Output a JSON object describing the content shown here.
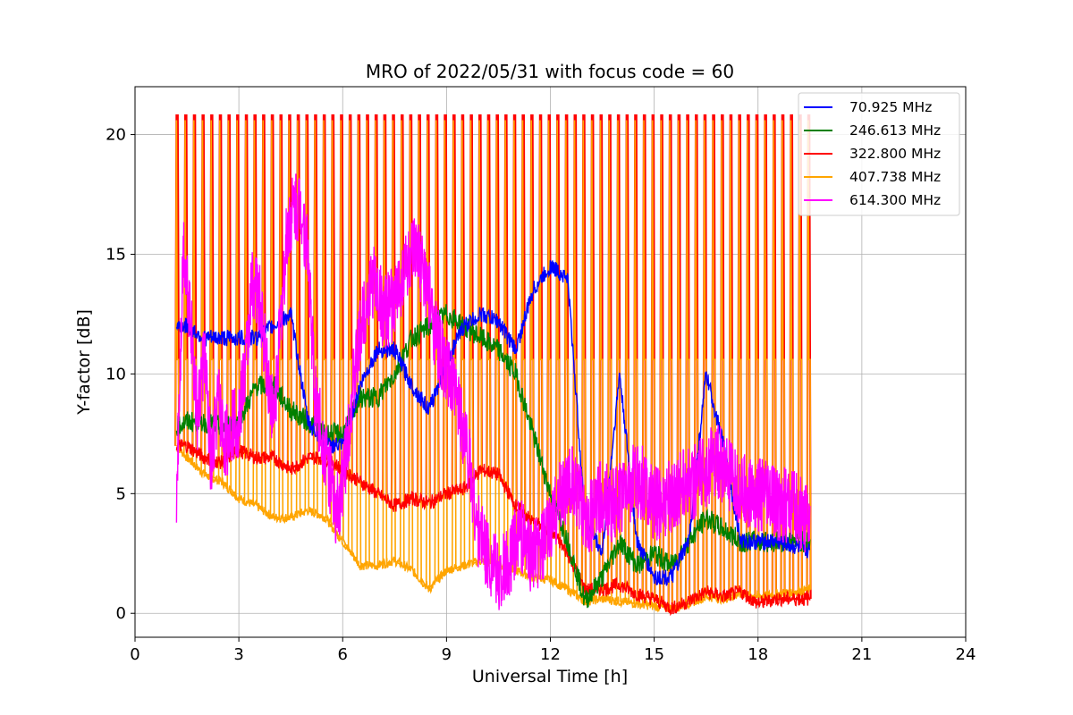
{
  "chart_data": {
    "type": "line",
    "title": "MRO of 2022/05/31 with focus code = 60",
    "xlabel": "Universal Time [h]",
    "ylabel": "Y-factor [dB]",
    "xlim": [
      0,
      24
    ],
    "ylim": [
      -1.0,
      22.0
    ],
    "xticks": [
      0,
      3,
      6,
      9,
      12,
      15,
      18,
      21,
      24
    ],
    "xtick_labels": [
      "0",
      "3",
      "6",
      "9",
      "12",
      "15",
      "18",
      "21",
      "24"
    ],
    "yticks": [
      0,
      5,
      10,
      15,
      20
    ],
    "ytick_labels": [
      "0",
      "5",
      "10",
      "15",
      "20"
    ],
    "grid": true,
    "legend_position": "top-right",
    "calibration_pulses": {
      "description_series": "322.800 MHz and 407.738 MHz",
      "t_start": 1.2,
      "t_end": 19.5,
      "period_h": 0.25,
      "peak_322": 20.8,
      "peak_407": 20.6,
      "plateau_407": 10.6
    },
    "series": [
      {
        "name": "70.925 MHz",
        "label": " 70.925 MHz",
        "color": "#0000ff",
        "x": [
          1.2,
          1.5,
          2.0,
          2.5,
          3.0,
          3.5,
          4.0,
          4.5,
          5.0,
          5.5,
          6.0,
          6.5,
          7.0,
          7.5,
          8.0,
          8.5,
          9.0,
          9.5,
          10.0,
          10.5,
          11.0,
          11.5,
          12.0,
          12.5,
          13.0,
          13.5,
          14.0,
          14.5,
          15.0,
          15.5,
          16.0,
          16.5,
          17.0,
          17.5,
          18.0,
          18.5,
          19.0,
          19.5
        ],
        "y": [
          12.0,
          12.0,
          11.5,
          11.5,
          11.5,
          11.5,
          12.0,
          12.5,
          8.0,
          7.0,
          7.0,
          9.5,
          11.0,
          11.0,
          9.5,
          8.5,
          10.5,
          12.0,
          12.5,
          12.2,
          11.0,
          13.5,
          14.5,
          14.0,
          4.0,
          2.5,
          10.0,
          3.0,
          1.5,
          1.5,
          3.0,
          10.0,
          7.0,
          3.0,
          3.0,
          3.0,
          2.8,
          2.6
        ]
      },
      {
        "name": "246.613 MHz",
        "label": "246.613 MHz",
        "color": "#008000",
        "x": [
          1.2,
          1.5,
          2.0,
          2.5,
          3.0,
          3.5,
          4.0,
          4.5,
          5.0,
          5.5,
          6.0,
          6.5,
          7.0,
          7.5,
          8.0,
          8.5,
          9.0,
          9.5,
          10.0,
          10.5,
          11.0,
          11.5,
          12.0,
          12.5,
          13.0,
          13.5,
          14.0,
          14.5,
          15.0,
          15.5,
          16.0,
          16.5,
          17.0,
          17.5,
          18.0,
          18.5,
          19.0,
          19.5
        ],
        "y": [
          7.8,
          8.0,
          8.0,
          7.8,
          8.0,
          9.5,
          9.5,
          8.5,
          8.0,
          7.5,
          7.5,
          9.0,
          9.0,
          10.0,
          11.5,
          12.0,
          12.5,
          12.0,
          11.5,
          11.0,
          10.0,
          7.5,
          5.0,
          3.0,
          0.5,
          1.5,
          3.0,
          2.0,
          2.5,
          2.0,
          3.0,
          4.0,
          3.5,
          3.0,
          3.0,
          3.0,
          3.0,
          3.0
        ]
      },
      {
        "name": "322.800 MHz",
        "label": "322.800 MHz",
        "color": "#ff0000",
        "x": [
          1.2,
          1.5,
          2.0,
          2.5,
          3.0,
          3.5,
          4.0,
          4.5,
          5.0,
          5.5,
          6.0,
          6.5,
          7.0,
          7.5,
          8.0,
          8.5,
          9.0,
          9.5,
          10.0,
          10.5,
          11.0,
          11.5,
          12.0,
          12.5,
          13.0,
          13.5,
          14.0,
          14.5,
          15.0,
          15.5,
          16.0,
          16.5,
          17.0,
          17.5,
          18.0,
          18.5,
          19.0,
          19.5
        ],
        "y": [
          7.0,
          7.0,
          6.5,
          6.3,
          6.8,
          6.5,
          6.5,
          6.0,
          6.5,
          6.5,
          6.0,
          5.5,
          5.0,
          4.5,
          4.8,
          4.6,
          5.0,
          5.2,
          6.0,
          5.8,
          4.5,
          3.8,
          3.5,
          2.5,
          1.0,
          1.0,
          1.2,
          0.8,
          0.6,
          0.2,
          0.5,
          0.9,
          0.7,
          0.9,
          0.4,
          0.6,
          0.6,
          0.6
        ]
      },
      {
        "name": "407.738 MHz",
        "label": "407.738 MHz",
        "color": "#ffa500",
        "x": [
          1.2,
          1.5,
          2.0,
          2.5,
          3.0,
          3.5,
          4.0,
          4.5,
          5.0,
          5.5,
          6.0,
          6.5,
          7.0,
          7.5,
          8.0,
          8.5,
          9.0,
          9.5,
          10.0,
          10.5,
          11.0,
          11.5,
          12.0,
          12.5,
          13.0,
          13.5,
          14.0,
          14.5,
          15.0,
          15.5,
          16.0,
          16.5,
          17.0,
          17.5,
          18.0,
          18.5,
          19.0,
          19.5
        ],
        "y": [
          7.0,
          6.5,
          5.8,
          5.5,
          4.8,
          4.5,
          4.0,
          4.0,
          4.3,
          4.0,
          3.0,
          2.0,
          2.0,
          2.2,
          1.8,
          1.0,
          1.8,
          2.0,
          2.2,
          2.0,
          1.8,
          1.5,
          1.4,
          1.0,
          0.5,
          0.6,
          0.5,
          0.4,
          0.3,
          0.2,
          0.4,
          0.7,
          0.6,
          0.8,
          0.7,
          0.8,
          0.9,
          1.0
        ]
      },
      {
        "name": "614.300 MHz",
        "label": "614.300 MHz",
        "color": "#ff00ff",
        "x": [
          1.2,
          1.4,
          1.6,
          1.8,
          2.0,
          2.2,
          2.4,
          2.6,
          2.8,
          3.0,
          3.2,
          3.4,
          3.6,
          3.8,
          4.0,
          4.2,
          4.4,
          4.6,
          4.8,
          5.0,
          5.2,
          5.4,
          5.6,
          5.8,
          6.0,
          6.3,
          6.6,
          6.9,
          7.2,
          7.5,
          7.8,
          8.1,
          8.4,
          8.7,
          9.0,
          9.3,
          9.6,
          9.9,
          10.2,
          10.5,
          10.8,
          11.1,
          11.4,
          11.7,
          12.0,
          12.3,
          12.6,
          12.9,
          13.2,
          13.5,
          13.8,
          14.1,
          14.4,
          14.7,
          15.0,
          15.3,
          15.6,
          15.9,
          16.2,
          16.5,
          16.8,
          17.1,
          17.4,
          17.7,
          18.0,
          18.3,
          18.6,
          18.9,
          19.2,
          19.5
        ],
        "y": [
          5.0,
          15.5,
          12.5,
          8.0,
          11.0,
          6.0,
          9.0,
          7.0,
          8.0,
          8.0,
          10.5,
          14.0,
          13.0,
          10.5,
          8.0,
          12.0,
          16.0,
          17.0,
          17.0,
          15.0,
          9.0,
          7.5,
          6.0,
          4.0,
          5.5,
          9.5,
          12.5,
          14.0,
          12.5,
          13.0,
          14.5,
          15.0,
          14.0,
          11.5,
          10.0,
          9.0,
          7.0,
          3.5,
          2.5,
          1.5,
          2.0,
          3.5,
          2.5,
          2.5,
          3.5,
          5.0,
          5.5,
          4.5,
          4.0,
          5.0,
          4.5,
          5.0,
          5.5,
          5.5,
          4.5,
          4.8,
          5.0,
          5.5,
          5.5,
          6.0,
          6.5,
          5.8,
          5.2,
          5.0,
          5.0,
          4.8,
          4.5,
          4.5,
          4.2,
          4.0
        ]
      }
    ]
  }
}
